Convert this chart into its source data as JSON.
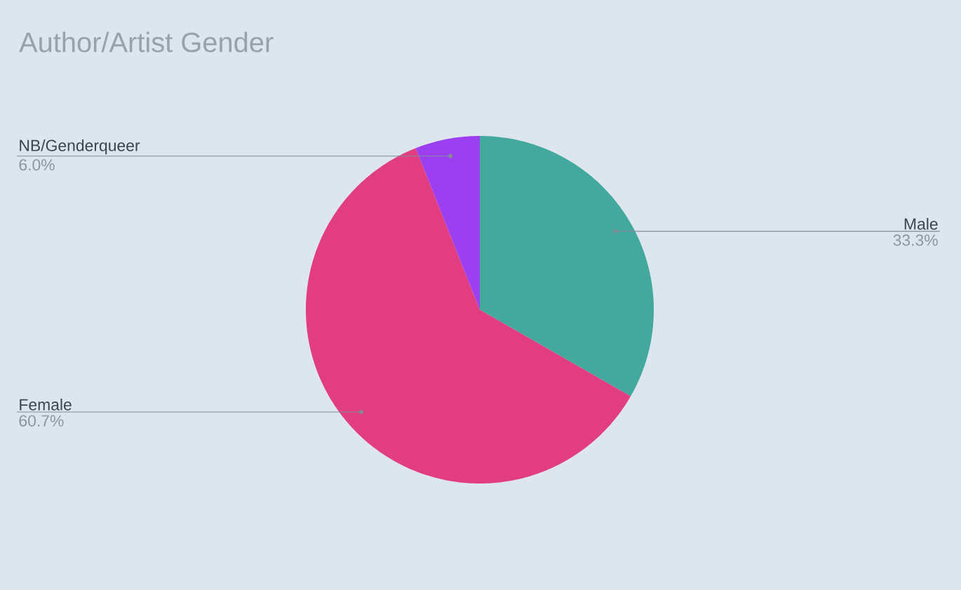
{
  "chart_data": {
    "type": "pie",
    "title": "Author/Artist Gender",
    "categories": [
      "Male",
      "Female",
      "NB/Genderqueer"
    ],
    "values": [
      33.3,
      60.7,
      6.0
    ],
    "value_labels": [
      "33.3%",
      "60.7%",
      "6.0%"
    ],
    "colors": [
      "#43a89e",
      "#e23d80",
      "#9b3ff0"
    ]
  }
}
